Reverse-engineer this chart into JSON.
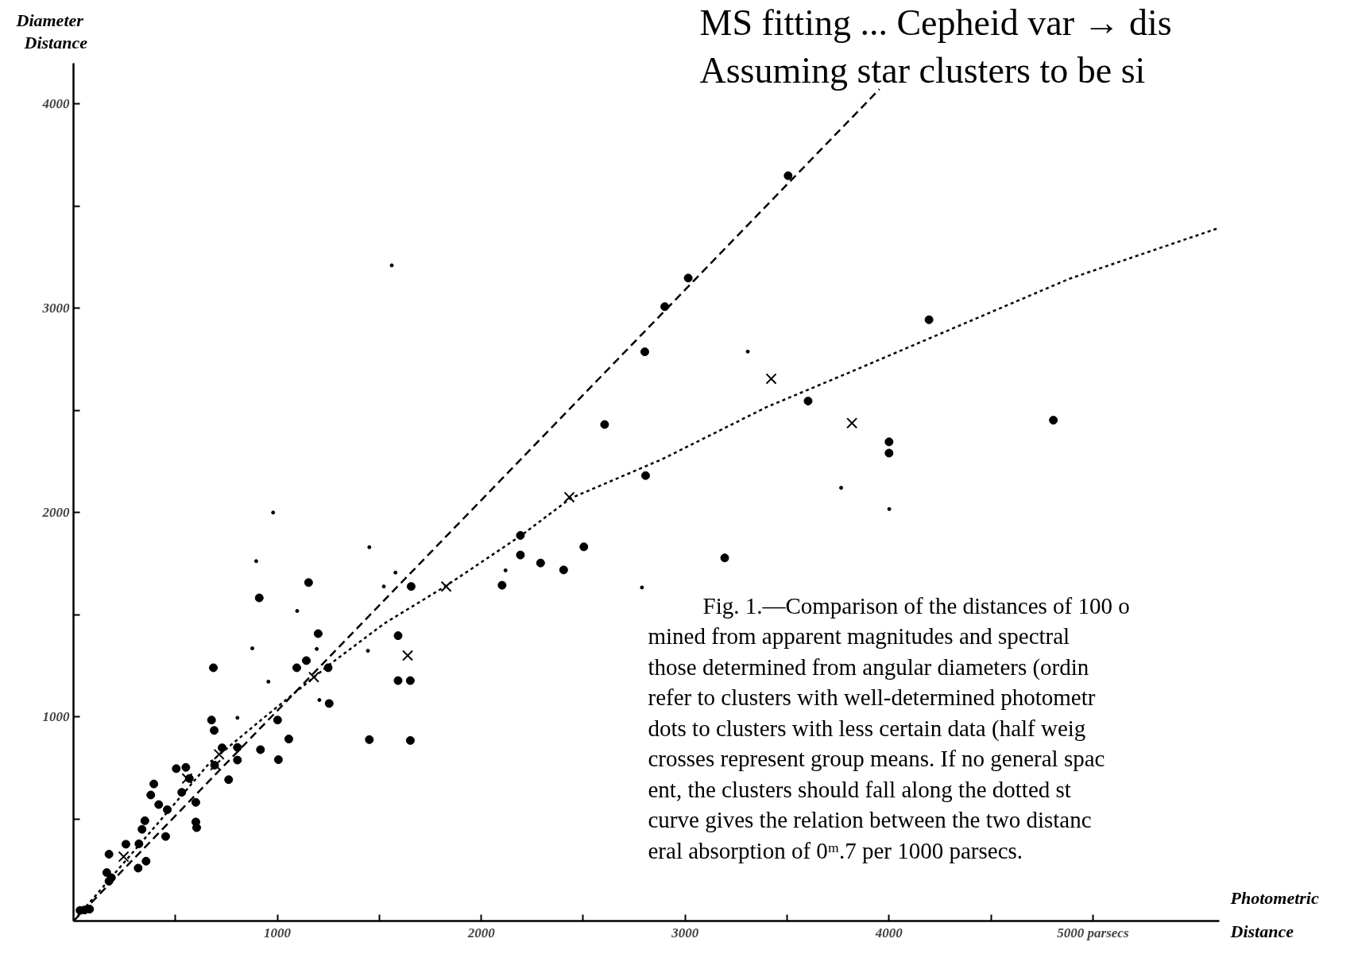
{
  "chart_data": {
    "type": "scatter",
    "title": "MS fitting ... Cepheid var → dis",
    "subtitle": "Assuming star clusters to be si",
    "xlabel": "Photometric Distance",
    "ylabel": "Diameter Distance",
    "xlim": [
      0,
      5620
    ],
    "ylim": [
      0,
      4200
    ],
    "xticks": [
      {
        "value": 500,
        "label": null
      },
      1000,
      {
        "value": 1500,
        "label": null
      },
      2000,
      {
        "value": 2500,
        "label": null
      },
      3000,
      {
        "value": 3500,
        "label": null
      },
      4000,
      {
        "value": 4500,
        "label": null
      },
      {
        "value": 5000,
        "label": "5000 parsecs"
      }
    ],
    "yticks": [
      {
        "value": 500,
        "label": null
      },
      1000,
      {
        "value": 1500,
        "label": null
      },
      2000,
      {
        "value": 2500,
        "label": null
      },
      3000,
      {
        "value": 3500,
        "label": null
      },
      4000
    ],
    "series": [
      {
        "type": "scatter",
        "marker": "circle",
        "color": "#000000",
        "x": [
          3505,
          3015,
          2900,
          2802,
          2605,
          2806,
          4196,
          3603,
          4806,
          4000,
          4000,
          3194,
          1153,
          911,
          1200,
          1142,
          1095,
          1249,
          686,
          1254,
          1592,
          1592,
          1652,
          1652,
          1451,
          1656,
          2102,
          2192,
          2192,
          2291,
          2404,
          2503,
          677,
          690,
          1001,
          1056,
          1005,
          804,
          761,
          804,
          729,
          917,
          692,
          504,
          551,
          568,
          531,
          394,
          379,
          418,
          460,
          600,
          600,
          604,
          452,
          350,
          336,
          321,
          257,
          356,
          317,
          174,
          163,
          174,
          186,
          54,
          79,
          32
        ],
        "values": [
          3649,
          3148,
          3008,
          2787,
          2431,
          2181,
          2944,
          2546,
          2452,
          2346,
          2291,
          1778,
          1657,
          1582,
          1407,
          1275,
          1240,
          1240,
          1240,
          1065,
          1397,
          1177,
          1177,
          884,
          888,
          1638,
          1644,
          1888,
          1792,
          1753,
          1719,
          1832,
          984,
          933,
          984,
          891,
          790,
          788,
          692,
          850,
          848,
          839,
          763,
          746,
          752,
          698,
          630,
          671,
          617,
          570,
          545,
          581,
          485,
          457,
          414,
          491,
          449,
          378,
          376,
          293,
          259,
          327,
          237,
          195,
          212,
          54,
          58,
          52
        ]
      },
      {
        "marker": "circle",
        "color": "#000000",
        "x": [
          979,
          896,
          1451,
          1579,
          1522,
          1097,
          877,
          1193,
          1444,
          956,
          1206,
          804,
          2119,
          2788,
          1561,
          3307,
          3765,
          4001
        ],
        "values": [
          2000,
          1762,
          1830,
          1706,
          1638,
          1518,
          1335,
          1332,
          1323,
          1172,
          1082,
          995,
          1717,
          1633,
          3210,
          2788,
          2121,
          2017
        ]
      },
      {
        "marker": "cross",
        "color": "#000000",
        "x": [
          3422,
          3818,
          2432,
          1828,
          1639,
          1179,
          714,
          696,
          557,
          246
        ],
        "values": [
          2655,
          2438,
          2075,
          1638,
          1300,
          1194,
          816,
          763,
          698,
          315
        ]
      },
      {
        "type": "line",
        "line_style": "dashed",
        "marker": "none",
        "color": "#000000",
        "x": [
          0,
          3953
        ],
        "values": [
          0,
          4073
        ]
      },
      {
        "type": "line",
        "line_style": "dotted",
        "marker": "none",
        "color": "#000000",
        "x": [
          0,
          158,
          414,
          669,
          926,
          1267,
          1522,
          1829,
          2196,
          2439,
          2887,
          3399,
          3825,
          4883,
          5608
        ],
        "values": [
          0,
          182,
          479,
          776,
          989,
          1264,
          1455,
          1642,
          1888,
          2070,
          2261,
          2516,
          2694,
          3144,
          3390
        ]
      }
    ],
    "annotations": [
      "Fig. 1.—Comparison of the distances of 100 o",
      "mined from apparent magnitudes and spectral",
      "those determined from angular diameters (ordin",
      "refer to clusters with well-determined photometr",
      "dots to clusters with less certain data (half weig",
      "crosses represent group means. If no general spac",
      "ent, the clusters should fall along the dotted st",
      "curve gives the relation between the two distanc",
      "eral absorption of 0ᵐ.7 per 1000 parsecs."
    ]
  }
}
